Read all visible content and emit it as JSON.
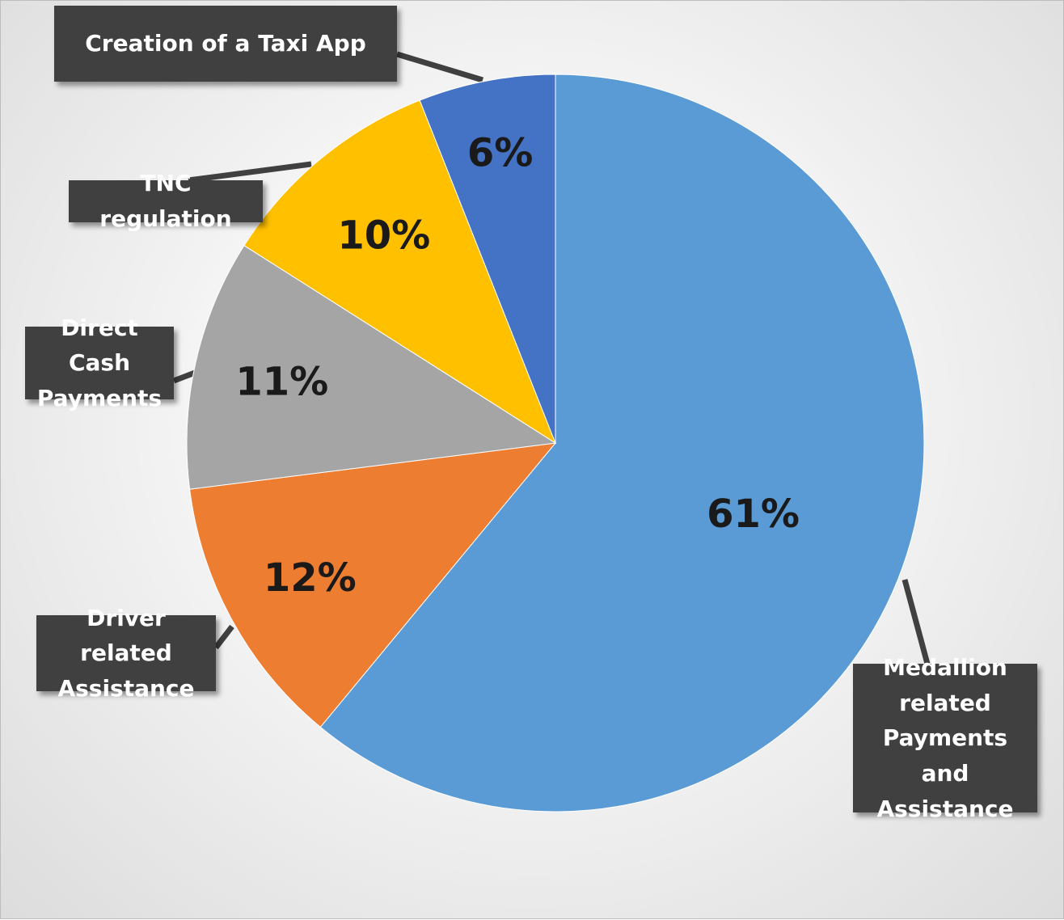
{
  "chart_data": {
    "type": "pie",
    "title": "",
    "start_angle_deg": 0,
    "direction": "clockwise",
    "slices": [
      {
        "label": "Medallion related\nPayments and\nAssistance",
        "value": 61,
        "display": "61%",
        "color": "#5B9BD5"
      },
      {
        "label": "Driver related\nAssistance",
        "value": 12,
        "display": "12%",
        "color": "#ED7D31"
      },
      {
        "label": "Direct Cash\nPayments",
        "value": 11,
        "display": "11%",
        "color": "#A5A5A5"
      },
      {
        "label": "TNC regulation",
        "value": 10,
        "display": "10%",
        "color": "#FFC000"
      },
      {
        "label": "Creation of a Taxi App",
        "value": 6,
        "display": "6%",
        "color": "#4472C4"
      }
    ]
  }
}
